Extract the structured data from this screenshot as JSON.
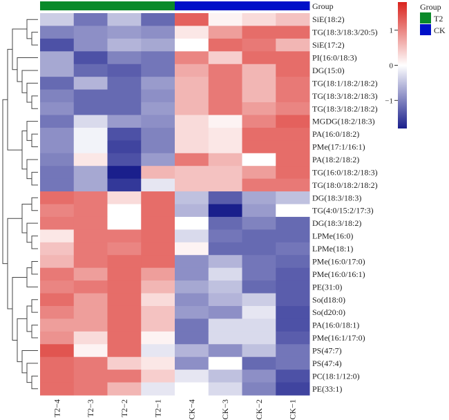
{
  "chart_data": {
    "type": "heatmap",
    "title": "",
    "annotation": {
      "title": "Group",
      "groups": [
        {
          "name": "T2",
          "color": "#0a8a2a"
        },
        {
          "name": "CK",
          "color": "#0010c8"
        }
      ],
      "column_groups": [
        "T2",
        "T2",
        "T2",
        "T2",
        "CK",
        "CK",
        "CK",
        "CK"
      ]
    },
    "columns": [
      "T2−4",
      "T2−3",
      "T2−2",
      "T2−1",
      "CK−4",
      "CK−3",
      "CK−2",
      "CK−1"
    ],
    "rows": [
      "SiE(18:2)",
      "TG(18:3/18:3/20:5)",
      "SiE(17:2)",
      "PI(16:0/18:3)",
      "DG(15:0)",
      "TG(18:1/18:2/18:2)",
      "TG(18:3/18:2/18:3)",
      "TG(18:3/18:2/18:2)",
      "MGDG(18:2/18:3)",
      "PA(16:0/18:2)",
      "PMe(17:1/16:1)",
      "PA(18:2/18:2)",
      "TG(16:0/18:2/18:3)",
      "TG(18:0/18:2/18:2)",
      "DG(18:3/18:3)",
      "TG(4:0/15:2/17:3)",
      "DG(18:3/18:2)",
      "LPMe(16:0)",
      "LPMe(18:1)",
      "PMe(16:0/17:0)",
      "PMe(16:0/16:1)",
      "PE(31:0)",
      "So(d18:0)",
      "So(d20:0)",
      "PA(16:0/18:1)",
      "PMe(16:1/17:0)",
      "PS(47:7)",
      "PS(47:4)",
      "PC(18:1/12:0)",
      "PE(33:1)"
    ],
    "values": [
      [
        -0.4,
        -1.1,
        -0.5,
        -1.2,
        1.3,
        0.1,
        0.3,
        0.5
      ],
      [
        -1.0,
        -0.9,
        -0.8,
        -0.9,
        0.2,
        0.8,
        1.2,
        1.2
      ],
      [
        -1.4,
        -0.9,
        -0.6,
        -0.7,
        0.0,
        1.2,
        1.1,
        0.6
      ],
      [
        -0.7,
        -1.4,
        -1.0,
        -1.1,
        1.0,
        0.4,
        1.2,
        1.2
      ],
      [
        -0.7,
        -1.2,
        -1.3,
        -1.1,
        0.7,
        1.1,
        0.6,
        1.2
      ],
      [
        -1.2,
        -0.6,
        -1.2,
        -0.8,
        0.6,
        1.1,
        0.6,
        1.1
      ],
      [
        -1.0,
        -1.2,
        -1.2,
        -0.9,
        0.6,
        1.1,
        0.6,
        1.1
      ],
      [
        -0.9,
        -1.2,
        -1.2,
        -0.8,
        0.6,
        1.1,
        0.8,
        1.0
      ],
      [
        -1.1,
        -0.3,
        -0.8,
        -0.9,
        0.3,
        0.1,
        1.0,
        1.3
      ],
      [
        -0.9,
        -0.1,
        -1.4,
        -1.0,
        0.3,
        0.2,
        1.2,
        1.2
      ],
      [
        -0.9,
        -0.1,
        -1.5,
        -1.0,
        0.3,
        0.2,
        1.2,
        1.2
      ],
      [
        -1.0,
        0.2,
        -1.4,
        -0.8,
        1.1,
        0.6,
        0.0,
        1.2
      ],
      [
        -1.1,
        -0.7,
        -1.8,
        0.6,
        0.5,
        0.5,
        0.8,
        1.2
      ],
      [
        -1.1,
        -0.7,
        -1.6,
        -0.2,
        0.5,
        0.5,
        1.1,
        1.1
      ],
      [
        1.2,
        1.1,
        0.3,
        1.2,
        -0.5,
        -1.3,
        -0.7,
        -0.5
      ],
      [
        1.0,
        1.1,
        0.0,
        1.2,
        -0.6,
        -1.8,
        -0.8,
        0.0
      ],
      [
        1.1,
        1.1,
        0.0,
        1.2,
        0.0,
        -1.2,
        -1.0,
        -1.2
      ],
      [
        0.2,
        1.1,
        1.1,
        1.2,
        -0.3,
        -1.1,
        -1.2,
        -1.2
      ],
      [
        0.5,
        1.1,
        1.0,
        1.2,
        0.1,
        -1.2,
        -1.2,
        -1.1
      ],
      [
        0.6,
        1.1,
        1.2,
        1.2,
        -0.9,
        -0.6,
        -1.1,
        -1.2
      ],
      [
        1.1,
        0.8,
        1.2,
        0.8,
        -0.9,
        -0.3,
        -1.1,
        -1.3
      ],
      [
        1.0,
        1.1,
        1.2,
        0.6,
        -0.7,
        -0.5,
        -1.2,
        -1.3
      ],
      [
        1.2,
        0.8,
        1.2,
        0.3,
        -0.9,
        -0.6,
        -0.4,
        -1.3
      ],
      [
        1.0,
        0.8,
        1.2,
        0.5,
        -0.8,
        -0.9,
        -0.2,
        -1.4
      ],
      [
        0.8,
        0.8,
        1.2,
        0.5,
        -1.1,
        -0.3,
        -0.3,
        -1.4
      ],
      [
        0.9,
        0.3,
        1.2,
        0.1,
        -1.1,
        -0.3,
        -0.3,
        -1.3
      ],
      [
        1.4,
        0.1,
        1.2,
        -0.2,
        -0.6,
        -0.9,
        -0.5,
        -1.1
      ],
      [
        1.2,
        1.1,
        0.4,
        0.2,
        -0.9,
        0.0,
        -1.2,
        -1.1
      ],
      [
        1.2,
        1.1,
        1.1,
        0.4,
        -0.2,
        -0.5,
        -0.9,
        -1.4
      ],
      [
        1.2,
        1.1,
        0.6,
        -0.2,
        0.0,
        -0.3,
        -1.0,
        -1.5
      ]
    ],
    "color_scale": {
      "low": "#1a1f8c",
      "mid": "#ffffff",
      "high": "#d9241e",
      "range": [
        -1.8,
        1.8
      ],
      "ticks": [
        1,
        0,
        -1
      ],
      "tick_labels": [
        "1",
        "0",
        "−1"
      ]
    },
    "row_dendrogram": true,
    "legend_position": "right"
  }
}
